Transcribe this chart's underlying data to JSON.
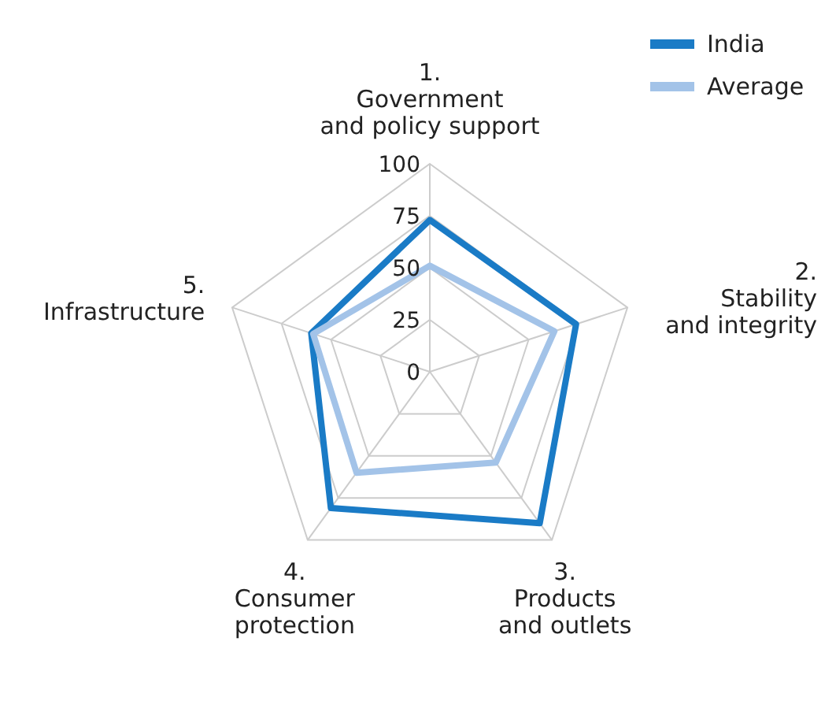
{
  "chart_data": {
    "type": "radar",
    "categories": [
      "1.\nGovernment\nand policy support",
      "2.\nStability\nand integrity",
      "3.\nProducts\nand outlets",
      "4.\nConsumer\nprotection",
      "5.\nInfrastructure"
    ],
    "series": [
      {
        "name": "India",
        "color": "#1a7bc6",
        "values": [
          73,
          74,
          90,
          81,
          60
        ]
      },
      {
        "name": "Average",
        "color": "#a3c3e8",
        "values": [
          51,
          63,
          54,
          60,
          59
        ]
      }
    ],
    "ylim": [
      0,
      100
    ],
    "yticks": [
      0,
      25,
      50,
      75,
      100
    ],
    "grid": true,
    "legend": "top right",
    "marker": "none",
    "line_style": "solid"
  }
}
